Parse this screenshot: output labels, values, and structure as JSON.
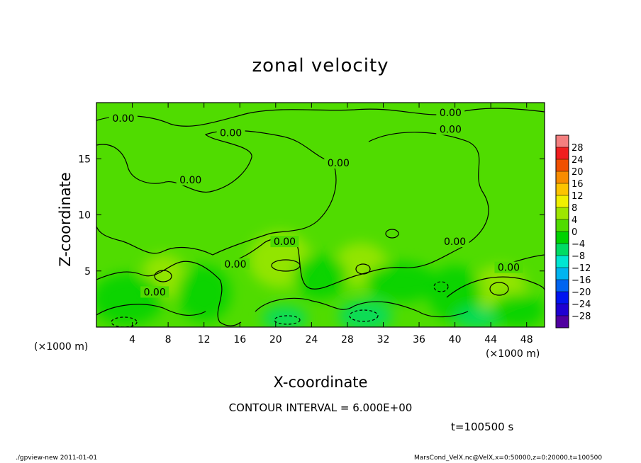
{
  "chart_data": {
    "type": "heatmap",
    "title": "zonal velocity",
    "xlabel": "X-coordinate",
    "ylabel": "Z-coordinate",
    "x_unit_label": "(×1000 m)",
    "x_unit_label_right": "(×1000 m)",
    "xlim": [
      0,
      50
    ],
    "ylim": [
      0,
      20
    ],
    "x_ticks": [
      4,
      8,
      12,
      16,
      20,
      24,
      28,
      32,
      36,
      40,
      44,
      48
    ],
    "y_ticks": [
      5,
      10,
      15
    ],
    "contour_interval_text": "CONTOUR INTERVAL = 6.000E+00",
    "time_text": "t=100500  s",
    "contour_labels": [
      {
        "text": "0.00",
        "x": 3,
        "z": 18.5
      },
      {
        "text": "0.00",
        "x": 15,
        "z": 17.2
      },
      {
        "text": "0.00",
        "x": 10.5,
        "z": 13
      },
      {
        "text": "0.00",
        "x": 27,
        "z": 14.5
      },
      {
        "text": "0.00",
        "x": 39.5,
        "z": 19
      },
      {
        "text": "0.00",
        "x": 39.5,
        "z": 17.5
      },
      {
        "text": "0.00",
        "x": 40,
        "z": 7.5
      },
      {
        "text": "0.00",
        "x": 21,
        "z": 7.5
      },
      {
        "text": "0.00",
        "x": 15.5,
        "z": 5.5
      },
      {
        "text": "0.00",
        "x": 6.5,
        "z": 3
      },
      {
        "text": "0.00",
        "x": 46,
        "z": 5.2
      }
    ],
    "colorbar": {
      "levels": [
        "28",
        "24",
        "20",
        "16",
        "12",
        "8",
        "4",
        "0",
        "−4",
        "−8",
        "−12",
        "−16",
        "−20",
        "−24",
        "−28"
      ],
      "colors": [
        "#f47f7f",
        "#f01e1e",
        "#f05000",
        "#f88c00",
        "#fcc400",
        "#f0f000",
        "#9ee600",
        "#50dc00",
        "#00d200",
        "#00dc64",
        "#00e6d2",
        "#00b4f0",
        "#0064f0",
        "#0014f0",
        "#1e00d2",
        "#5000a0"
      ]
    },
    "field_blobs": [
      {
        "x": 20.5,
        "z": 6,
        "rx": 3.5,
        "ry": 2.5,
        "value": 5
      },
      {
        "x": 29.5,
        "z": 5.5,
        "rx": 3,
        "ry": 2,
        "value": 4
      },
      {
        "x": 7.5,
        "z": 4.5,
        "rx": 2.5,
        "ry": 2,
        "value": 4
      },
      {
        "x": 45,
        "z": 3.5,
        "rx": 3,
        "ry": 2,
        "value": 4
      },
      {
        "x": 30,
        "z": 1,
        "rx": 3,
        "ry": 1.4,
        "value": -7
      },
      {
        "x": 21,
        "z": 0.8,
        "rx": 2.5,
        "ry": 1.1,
        "value": -6
      },
      {
        "x": 40,
        "z": 3,
        "rx": 3,
        "ry": 2.5,
        "value": -5
      },
      {
        "x": 34,
        "z": 4,
        "rx": 4,
        "ry": 1.8,
        "value": -3
      },
      {
        "x": 3.5,
        "z": 2.5,
        "rx": 4,
        "ry": 2.3,
        "value": -4
      },
      {
        "x": 12,
        "z": 3,
        "rx": 3,
        "ry": 2.5,
        "value": -3
      },
      {
        "x": 42.5,
        "z": 0.8,
        "rx": 2.5,
        "ry": 1,
        "value": -6
      },
      {
        "x": 47,
        "z": 1.5,
        "rx": 3,
        "ry": 1.5,
        "value": -3
      },
      {
        "x": 25,
        "z": 4.5,
        "rx": 3,
        "ry": 2,
        "value": -2
      }
    ]
  },
  "footer": {
    "left": "./gpview-new  2011-01-01",
    "right": "MarsCond_VelX.nc@VelX,x=0:50000,z=0:20000,t=100500"
  }
}
